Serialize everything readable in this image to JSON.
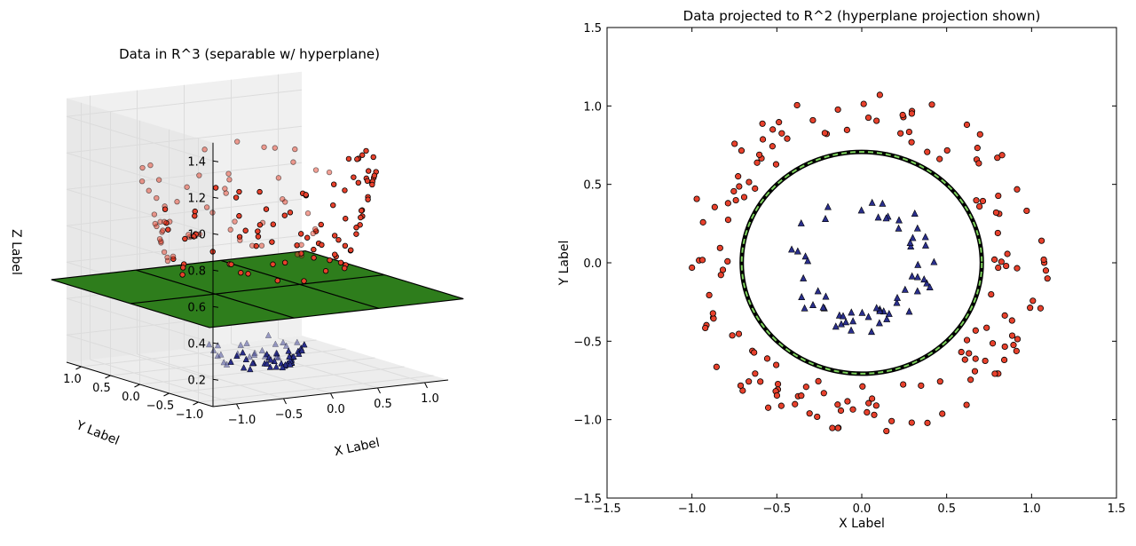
{
  "colors": {
    "outer_point": "#e8412c",
    "inner_point": "#2a2f8c",
    "plane": "#2e7d1c",
    "circle_outer": "#000000",
    "circle_mid": "#7dd35c",
    "pane": "#f2f2f2",
    "grid": "#dcdcdc"
  },
  "chart_data": [
    {
      "type": "scatter",
      "title": "Data in R^3 (separable w/ hyperplane)",
      "xlabel": "X Label",
      "ylabel": "Y Label",
      "zlabel": "Z Label",
      "xlim": [
        -1.25,
        1.25
      ],
      "ylim": [
        -1.25,
        1.25
      ],
      "zlim": [
        0.05,
        1.5
      ],
      "xticks": [
        "−1.0",
        "−0.5",
        "0.0",
        "0.5",
        "1.0"
      ],
      "xtick_values": [
        -1.0,
        -0.5,
        0.0,
        0.5,
        1.0
      ],
      "yticks": [
        "1.0",
        "0.5",
        "0.0",
        "−0.5",
        "−1.0"
      ],
      "ytick_values": [
        1.0,
        0.5,
        0.0,
        -0.5,
        -1.0
      ],
      "zticks": [
        "0.2",
        "0.4",
        "0.6",
        "0.8",
        "1.0",
        "1.2",
        "1.4"
      ],
      "ztick_values": [
        0.2,
        0.4,
        0.6,
        0.8,
        1.0,
        1.2,
        1.4
      ],
      "hyperplane_z": 0.5,
      "grid": true,
      "series": [
        {
          "marker": "circle",
          "color": "#e8412c",
          "description_of_geometry": "ring of radius ~0.75–1.1, z = x^2 + y^2"
        },
        {
          "marker": "triangle",
          "color": "#2a2f8c",
          "description_of_geometry": "ring of radius ~0.3–0.45, z = x^2 + y^2"
        }
      ]
    },
    {
      "type": "scatter",
      "title": "Data projected to R^2 (hyperplane projection shown)",
      "xlabel": "X Label",
      "ylabel": "Y Label",
      "xlim": [
        -1.5,
        1.5
      ],
      "ylim": [
        -1.5,
        1.5
      ],
      "xticks": [
        "−1.5",
        "−1.0",
        "−0.5",
        "0.0",
        "0.5",
        "1.0",
        "1.5"
      ],
      "xtick_values": [
        -1.5,
        -1.0,
        -0.5,
        0.0,
        0.5,
        1.0,
        1.5
      ],
      "yticks": [
        "−1.5",
        "−1.0",
        "−0.5",
        "0.0",
        "0.5",
        "1.0",
        "1.5"
      ],
      "ytick_values": [
        -1.5,
        -1.0,
        -0.5,
        0.0,
        0.5,
        1.0,
        1.5
      ],
      "boundary_circle_radius": 0.707,
      "grid": false,
      "series": [
        {
          "marker": "circle",
          "color": "#e8412c"
        },
        {
          "marker": "triangle",
          "color": "#2a2f8c"
        }
      ]
    }
  ]
}
